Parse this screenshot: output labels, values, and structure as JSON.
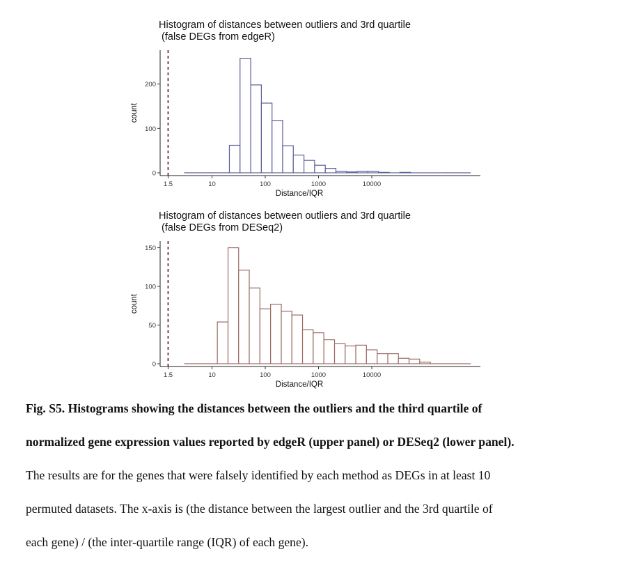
{
  "panels": [
    {
      "title_line1": "Histogram of distances between outliers and 3rd quartile",
      "title_line2": " (false DEGs from edgeR)",
      "color": "#5b5e99",
      "dashed_line_x": 1.5
    },
    {
      "title_line1": "Histogram of distances between outliers and 3rd quartile",
      "title_line2": " (false DEGs from DESeq2)",
      "color": "#9c6b66",
      "dashed_line_x": 1.5
    }
  ],
  "caption": {
    "line1": "Fig. S5. Histograms showing the distances between the outliers and the third quartile of",
    "line2": "normalized gene expression values reported by edgeR (upper panel) or DESeq2 (lower panel).",
    "line3": "The results are for the genes that were falsely identified by each method as DEGs in at least 10",
    "line4": "permuted datasets. The x-axis is (the distance between the largest outlier and the 3rd quartile of",
    "line5": "each gene) / (the inter-quartile range (IQR) of each gene)."
  },
  "chart_data": [
    {
      "type": "bar",
      "title": "Histogram of distances between outliers and 3rd quartile (false DEGs from edgeR)",
      "xlabel": "Distance/IQR",
      "ylabel": "count",
      "x_scale": "log10",
      "x_ticks": [
        1.5,
        10,
        100,
        1000,
        10000
      ],
      "x_tick_labels": [
        "1.5",
        "10",
        "100",
        "1000",
        "10000"
      ],
      "xlim": [
        1,
        1000000
      ],
      "y_ticks": [
        0,
        100,
        200
      ],
      "ylim": [
        0,
        270
      ],
      "reference_line_x": 1.5,
      "grid": false,
      "bins": [
        {
          "x0": 3.0,
          "x1": 21.2,
          "count": 0
        },
        {
          "x0": 21.2,
          "x1": 33.6,
          "count": 62
        },
        {
          "x0": 33.6,
          "x1": 53.3,
          "count": 258
        },
        {
          "x0": 53.3,
          "x1": 84.5,
          "count": 198
        },
        {
          "x0": 84.5,
          "x1": 134,
          "count": 157
        },
        {
          "x0": 134,
          "x1": 212,
          "count": 118
        },
        {
          "x0": 212,
          "x1": 336,
          "count": 61
        },
        {
          "x0": 336,
          "x1": 533,
          "count": 40
        },
        {
          "x0": 533,
          "x1": 845,
          "count": 28
        },
        {
          "x0": 845,
          "x1": 1340,
          "count": 17
        },
        {
          "x0": 1340,
          "x1": 2120,
          "count": 10
        },
        {
          "x0": 2120,
          "x1": 3360,
          "count": 3
        },
        {
          "x0": 3360,
          "x1": 5330,
          "count": 2
        },
        {
          "x0": 5330,
          "x1": 8450,
          "count": 3
        },
        {
          "x0": 8450,
          "x1": 13400,
          "count": 3
        },
        {
          "x0": 13400,
          "x1": 21200,
          "count": 1
        },
        {
          "x0": 21200,
          "x1": 33600,
          "count": 0
        },
        {
          "x0": 33600,
          "x1": 53300,
          "count": 1
        },
        {
          "x0": 53300,
          "x1": 84500,
          "count": 0
        },
        {
          "x0": 84500,
          "x1": 134000,
          "count": 0
        },
        {
          "x0": 134000,
          "x1": 212000,
          "count": 0
        },
        {
          "x0": 212000,
          "x1": 720000,
          "count": 0
        }
      ]
    },
    {
      "type": "bar",
      "title": "Histogram of distances between outliers and 3rd quartile (false DEGs from DESeq2)",
      "xlabel": "Distance/IQR",
      "ylabel": "count",
      "x_scale": "log10",
      "x_ticks": [
        1.5,
        10,
        100,
        1000,
        10000
      ],
      "x_tick_labels": [
        "1.5",
        "10",
        "100",
        "1000",
        "10000"
      ],
      "xlim": [
        1,
        1000000
      ],
      "y_ticks": [
        0,
        50,
        100,
        150
      ],
      "ylim": [
        0,
        155
      ],
      "reference_line_x": 1.5,
      "grid": false,
      "bins": [
        {
          "x0": 3.0,
          "x1": 12.6,
          "count": 0
        },
        {
          "x0": 12.6,
          "x1": 20.0,
          "count": 54
        },
        {
          "x0": 20.0,
          "x1": 31.6,
          "count": 150
        },
        {
          "x0": 31.6,
          "x1": 50.1,
          "count": 121
        },
        {
          "x0": 50.1,
          "x1": 79.4,
          "count": 98
        },
        {
          "x0": 79.4,
          "x1": 126,
          "count": 71
        },
        {
          "x0": 126,
          "x1": 200,
          "count": 77
        },
        {
          "x0": 200,
          "x1": 316,
          "count": 68
        },
        {
          "x0": 316,
          "x1": 501,
          "count": 63
        },
        {
          "x0": 501,
          "x1": 794,
          "count": 44
        },
        {
          "x0": 794,
          "x1": 1260,
          "count": 40
        },
        {
          "x0": 1260,
          "x1": 2000,
          "count": 31
        },
        {
          "x0": 2000,
          "x1": 3160,
          "count": 26
        },
        {
          "x0": 3160,
          "x1": 5010,
          "count": 23
        },
        {
          "x0": 5010,
          "x1": 7940,
          "count": 24
        },
        {
          "x0": 7940,
          "x1": 12600,
          "count": 18
        },
        {
          "x0": 12600,
          "x1": 20000,
          "count": 13
        },
        {
          "x0": 20000,
          "x1": 31600,
          "count": 13
        },
        {
          "x0": 31600,
          "x1": 50100,
          "count": 7
        },
        {
          "x0": 50100,
          "x1": 79400,
          "count": 6
        },
        {
          "x0": 79400,
          "x1": 126000,
          "count": 2
        },
        {
          "x0": 126000,
          "x1": 720000,
          "count": 0
        }
      ]
    }
  ]
}
